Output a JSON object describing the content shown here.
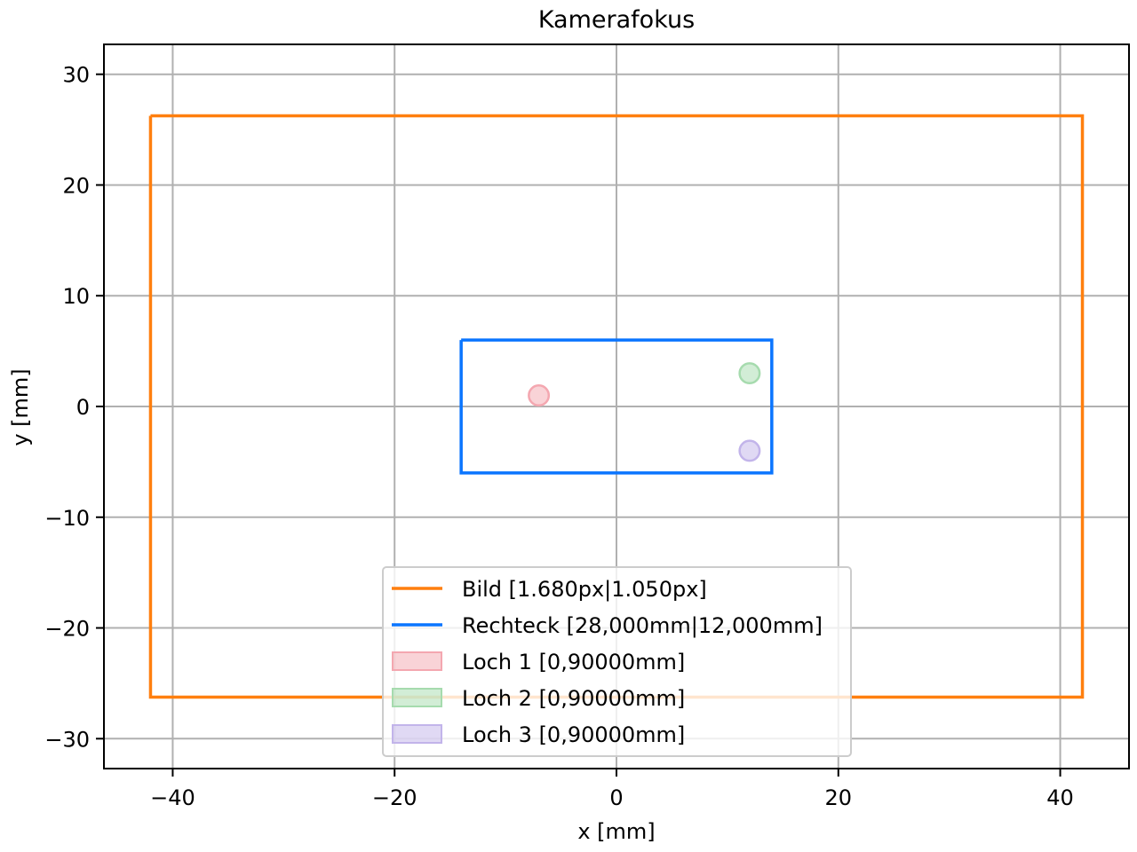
{
  "chart_data": {
    "type": "line",
    "title": "Kamerafokus",
    "xlabel": "x [mm]",
    "ylabel": "y [mm]",
    "xlim": [
      -46.2,
      46.2
    ],
    "ylim": [
      -32.7,
      32.7
    ],
    "xticks": [
      -40,
      -20,
      0,
      20,
      40
    ],
    "xtick_labels": [
      "−40",
      "−20",
      "0",
      "20",
      "40"
    ],
    "yticks": [
      30,
      20,
      10,
      0,
      -10,
      -20,
      -30
    ],
    "ytick_labels": [
      "30",
      "20",
      "10",
      "0",
      "−10",
      "−20",
      "−30"
    ],
    "grid": true,
    "legend_position": "lower center",
    "series": [
      {
        "name": "Bild [1.680px|1.050px]",
        "kind": "rectangle",
        "color": "#ff7f0e",
        "x": [
          -42,
          42,
          42,
          -42,
          -42
        ],
        "y": [
          26.25,
          26.25,
          -26.25,
          -26.25,
          26.25
        ]
      },
      {
        "name": "Rechteck [28,000mm|12,000mm]",
        "kind": "rectangle",
        "color": "#0a75ff",
        "x": [
          -14,
          14,
          14,
          -14,
          -14
        ],
        "y": [
          6,
          6,
          -6,
          -6,
          6
        ]
      },
      {
        "name": "Loch 1 [0,90000mm]",
        "kind": "circle",
        "color": "#f4a7b0",
        "center": [
          -7,
          1
        ],
        "radius": 0.9
      },
      {
        "name": "Loch 2 [0,90000mm]",
        "kind": "circle",
        "color": "#a6dbae",
        "center": [
          12,
          3
        ],
        "radius": 0.9
      },
      {
        "name": "Loch 3 [0,90000mm]",
        "kind": "circle",
        "color": "#c2b4ea",
        "center": [
          12,
          -4
        ],
        "radius": 0.9
      }
    ]
  }
}
